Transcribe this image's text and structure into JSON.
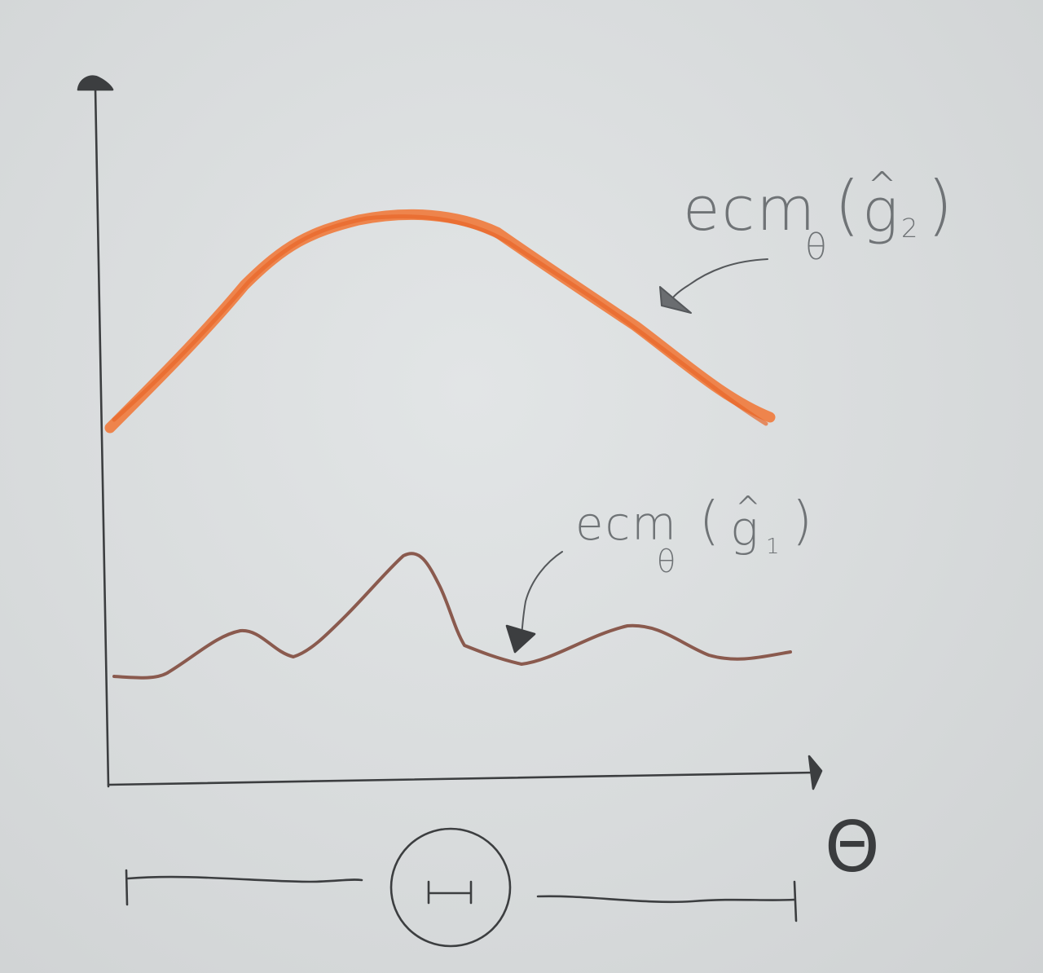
{
  "diagram": {
    "x_axis_label": "Θ",
    "domain_symbol": "Θ",
    "curve_g2": {
      "label_prefix": "ecm",
      "label_subscript": "θ",
      "label_open": "(",
      "label_letter": "g",
      "label_hat": "^",
      "label_index": "2",
      "label_close": ")",
      "color": "#f07a3c"
    },
    "curve_g1": {
      "label_prefix": "ecm",
      "label_subscript": "θ",
      "label_open": "(",
      "label_letter": "g",
      "label_hat": "^",
      "label_index": "1",
      "label_close": ")",
      "color": "#8a5a4e"
    }
  }
}
